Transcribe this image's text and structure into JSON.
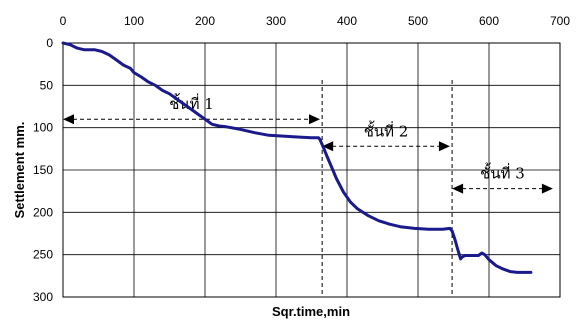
{
  "chart_data": {
    "type": "line",
    "xlabel": "Sqr.time,min",
    "ylabel": "Settlement mm.",
    "xlim": [
      0,
      700
    ],
    "ylim": [
      300,
      0
    ],
    "x_axis_position": "top",
    "y_inverted": true,
    "grid": true,
    "legend": "none",
    "x_ticks": [
      0,
      100,
      200,
      300,
      400,
      500,
      600,
      700
    ],
    "y_ticks": [
      0,
      50,
      100,
      150,
      200,
      250,
      300
    ],
    "series": [
      {
        "color": "#1a1a8c",
        "points": [
          [
            0,
            0
          ],
          [
            10,
            2
          ],
          [
            20,
            6
          ],
          [
            30,
            8
          ],
          [
            45,
            8
          ],
          [
            55,
            10
          ],
          [
            65,
            14
          ],
          [
            75,
            20
          ],
          [
            85,
            26
          ],
          [
            95,
            30
          ],
          [
            100,
            35
          ],
          [
            110,
            40
          ],
          [
            120,
            46
          ],
          [
            130,
            50
          ],
          [
            140,
            56
          ],
          [
            150,
            60
          ],
          [
            160,
            66
          ],
          [
            170,
            72
          ],
          [
            180,
            78
          ],
          [
            190,
            84
          ],
          [
            200,
            90
          ],
          [
            210,
            96
          ],
          [
            220,
            98
          ],
          [
            230,
            99
          ],
          [
            250,
            102
          ],
          [
            270,
            106
          ],
          [
            290,
            109
          ],
          [
            310,
            110
          ],
          [
            330,
            111
          ],
          [
            350,
            112
          ],
          [
            360,
            112
          ],
          [
            362,
            114
          ],
          [
            364,
            118
          ],
          [
            366,
            122
          ],
          [
            368,
            126
          ],
          [
            372,
            134
          ],
          [
            378,
            146
          ],
          [
            385,
            160
          ],
          [
            395,
            176
          ],
          [
            405,
            188
          ],
          [
            415,
            196
          ],
          [
            430,
            204
          ],
          [
            445,
            210
          ],
          [
            460,
            214
          ],
          [
            475,
            217
          ],
          [
            495,
            219
          ],
          [
            515,
            220
          ],
          [
            535,
            220
          ],
          [
            545,
            219
          ],
          [
            548,
            222
          ],
          [
            552,
            232
          ],
          [
            556,
            244
          ],
          [
            560,
            255
          ],
          [
            562,
            253
          ],
          [
            566,
            251
          ],
          [
            575,
            251
          ],
          [
            585,
            251
          ],
          [
            590,
            248
          ],
          [
            594,
            250
          ],
          [
            600,
            256
          ],
          [
            610,
            263
          ],
          [
            620,
            267
          ],
          [
            630,
            270
          ],
          [
            640,
            271
          ],
          [
            650,
            271
          ],
          [
            659,
            271
          ]
        ]
      }
    ],
    "vertical_markers": [
      365,
      548
    ],
    "annotations": [
      {
        "label": "ชั้นที่ 1",
        "arrow_x": [
          0,
          362
        ],
        "arrow_y": 90
      },
      {
        "label": "ชั้นที่ 2",
        "arrow_x": [
          365,
          545
        ],
        "arrow_y": 122
      },
      {
        "label": "ชั้นที่ 3",
        "arrow_x": [
          548,
          690
        ],
        "arrow_y": 172
      }
    ]
  }
}
